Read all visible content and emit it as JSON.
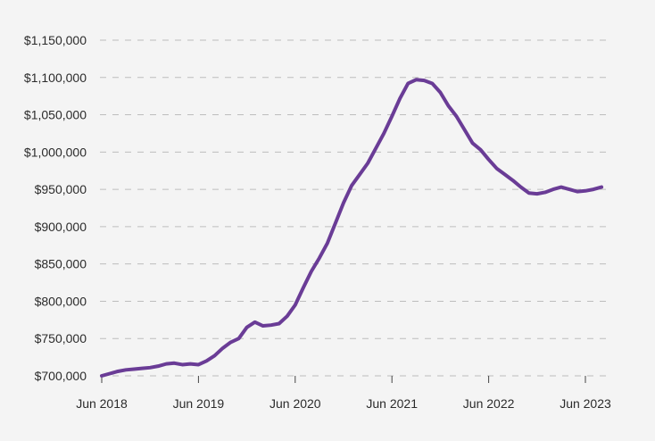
{
  "chart_data": {
    "type": "line",
    "title": "",
    "xlabel": "",
    "ylabel": "",
    "x_tick_labels": [
      "Jun 2018",
      "Jun 2019",
      "Jun 2020",
      "Jun 2021",
      "Jun 2022",
      "Jun 2023"
    ],
    "y_tick_labels": [
      "$700,000",
      "$750,000",
      "$800,000",
      "$850,000",
      "$900,000",
      "$950,000",
      "$1,000,000",
      "$1,050,000",
      "$1,100,000",
      "$1,150,000"
    ],
    "y_ticks": [
      700000,
      750000,
      800000,
      850000,
      900000,
      950000,
      1000000,
      1050000,
      1100000,
      1150000
    ],
    "ylim": [
      700000,
      1150000
    ],
    "xlim": [
      "2018-06",
      "2023-08"
    ],
    "grid": "horizontal dashed",
    "colors": {
      "line": "#6a3c96",
      "grid": "#bdbdbd",
      "background": "#f4f4f4"
    },
    "x": [
      "2018-06",
      "2018-07",
      "2018-08",
      "2018-09",
      "2018-10",
      "2018-11",
      "2018-12",
      "2019-01",
      "2019-02",
      "2019-03",
      "2019-04",
      "2019-05",
      "2019-06",
      "2019-07",
      "2019-08",
      "2019-09",
      "2019-10",
      "2019-11",
      "2019-12",
      "2020-01",
      "2020-02",
      "2020-03",
      "2020-04",
      "2020-05",
      "2020-06",
      "2020-07",
      "2020-08",
      "2020-09",
      "2020-10",
      "2020-11",
      "2020-12",
      "2021-01",
      "2021-02",
      "2021-03",
      "2021-04",
      "2021-05",
      "2021-06",
      "2021-07",
      "2021-08",
      "2021-09",
      "2021-10",
      "2021-11",
      "2021-12",
      "2022-01",
      "2022-02",
      "2022-03",
      "2022-04",
      "2022-05",
      "2022-06",
      "2022-07",
      "2022-08",
      "2022-09",
      "2022-10",
      "2022-11",
      "2022-12",
      "2023-01",
      "2023-02",
      "2023-03",
      "2023-04",
      "2023-05",
      "2023-06",
      "2023-07",
      "2023-08"
    ],
    "series": [
      {
        "values": [
          700000,
          703000,
          706000,
          708000,
          709000,
          710000,
          711000,
          713000,
          716000,
          717000,
          715000,
          716000,
          715000,
          720000,
          727000,
          737000,
          745000,
          750000,
          765000,
          772000,
          767000,
          768000,
          770000,
          780000,
          795000,
          818000,
          840000,
          858000,
          878000,
          905000,
          932000,
          955000,
          970000,
          985000,
          1005000,
          1025000,
          1048000,
          1072000,
          1092000,
          1097000,
          1096000,
          1092000,
          1080000,
          1062000,
          1048000,
          1030000,
          1012000,
          1003000,
          990000,
          978000,
          970000,
          962000,
          953000,
          945000,
          944000,
          946000,
          950000,
          953000,
          950000,
          947000,
          948000,
          950000,
          953000
        ]
      }
    ]
  }
}
